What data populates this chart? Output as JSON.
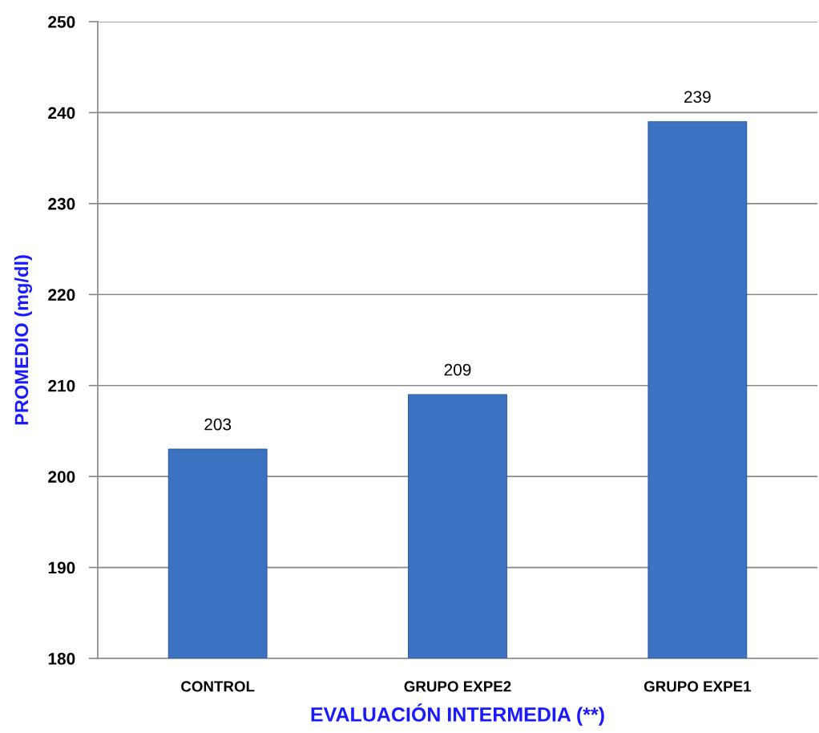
{
  "chart_data": {
    "type": "bar",
    "xlabel": "EVALUACIÓN INTERMEDIA (**)",
    "ylabel": "PROMEDIO (mg/dl)",
    "categories": [
      "CONTROL",
      "GRUPO EXPE2",
      "GRUPO EXPE1"
    ],
    "values": [
      203,
      209,
      239
    ],
    "color": "#3b73c2",
    "ylim": [
      180,
      250
    ],
    "yticks": [
      180,
      190,
      200,
      210,
      220,
      230,
      240,
      250
    ],
    "grid": "y",
    "data_labels": true,
    "legend": false
  }
}
